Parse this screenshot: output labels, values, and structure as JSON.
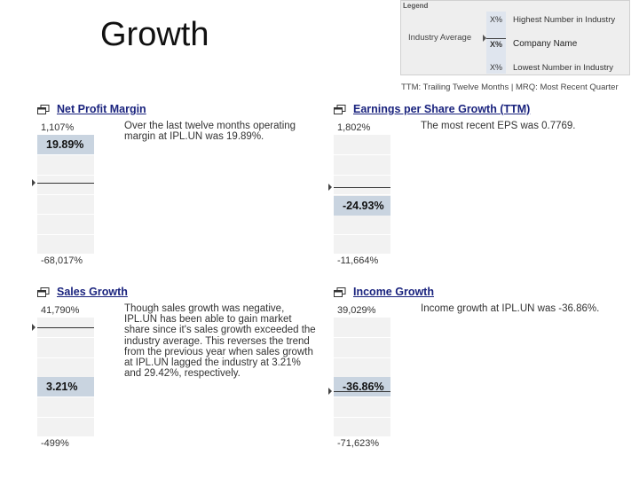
{
  "slide": {
    "title": "Growth"
  },
  "legend": {
    "title": "Legend",
    "highest_value": "X%",
    "highest_label": "Highest Number in Industry",
    "industry_label": "Industry Average",
    "company_value": "X%",
    "company_label": "Company Name",
    "lowest_value": "X%",
    "lowest_label": "Lowest Number in Industry"
  },
  "ttm_note": "TTM: Trailing Twelve Months | MRQ: Most Recent Quarter",
  "panels": [
    {
      "title": "Net Profit Margin",
      "high": "1,107%",
      "company_value": "19.89%",
      "low": "-68,017%",
      "company_level": 0.92,
      "industry_level": 0.6,
      "text": "Over the last twelve months operating margin at IPL.UN was 19.89%."
    },
    {
      "title": "Earnings per Share Growth (TTM)",
      "high": "1,802%",
      "company_value": "-24.93%",
      "low": "-11,664%",
      "company_level": 0.4,
      "industry_level": 0.56,
      "text": "The most recent EPS was 0.7769."
    },
    {
      "title": "Sales Growth",
      "high": "41,790%",
      "company_value": "3.21%",
      "low": "-499%",
      "company_level": 0.42,
      "industry_level": 0.92,
      "text": "Though sales growth was negative, IPL.UN has been able to gain market share since it's sales growth exceeded the industry average. This reverses the trend from the previous year when sales growth at IPL.UN lagged the industry at 3.21% and 29.42%, respectively."
    },
    {
      "title": "Income Growth",
      "high": "39,029%",
      "company_value": "-36.86%",
      "low": "-71,623%",
      "company_level": 0.42,
      "industry_level": 0.38,
      "text": "Income growth at IPL.UN was -36.86%."
    }
  ]
}
